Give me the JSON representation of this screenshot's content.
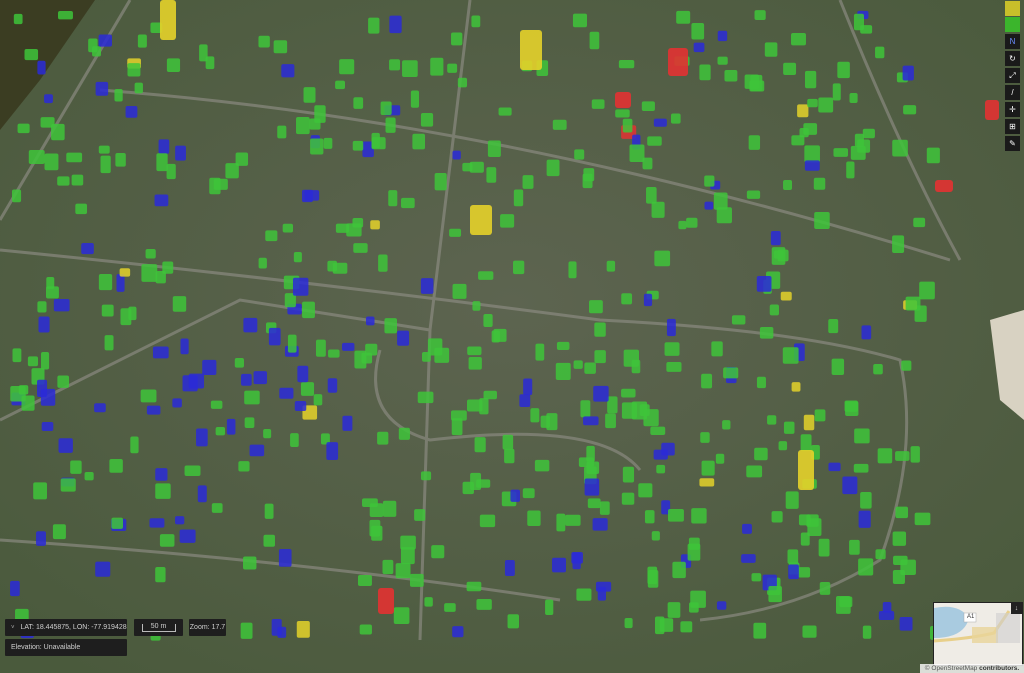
{
  "map": {
    "damage_colors": {
      "no_damage": "#3ec43a",
      "minor": "#2a2ad8",
      "major": "#e4d22a",
      "destroyed": "#e23232"
    }
  },
  "info": {
    "coordinates": "LAT: 18.445875, LON: -77.919428",
    "elevation": "Elevation: Unavailable",
    "scale": "50 m",
    "zoom": "Zoom: 17.7"
  },
  "toolbar": {
    "swatches": [
      "#c8bf2a",
      "#3bb52c"
    ],
    "buttons": [
      {
        "name": "north-arrow",
        "glyph": "N"
      },
      {
        "name": "rotate",
        "glyph": "↻"
      },
      {
        "name": "zoom-area",
        "glyph": "⤢"
      },
      {
        "name": "measure",
        "glyph": "/"
      },
      {
        "name": "crosshair",
        "glyph": "✛"
      },
      {
        "name": "grid",
        "glyph": "⊞"
      },
      {
        "name": "edit",
        "glyph": "✎"
      }
    ]
  },
  "minimap": {
    "road_label": "A1",
    "collapse": "↓"
  },
  "attribution": {
    "symbol": "©",
    "link": "OpenStreetMap",
    "suffix": " contributors."
  }
}
